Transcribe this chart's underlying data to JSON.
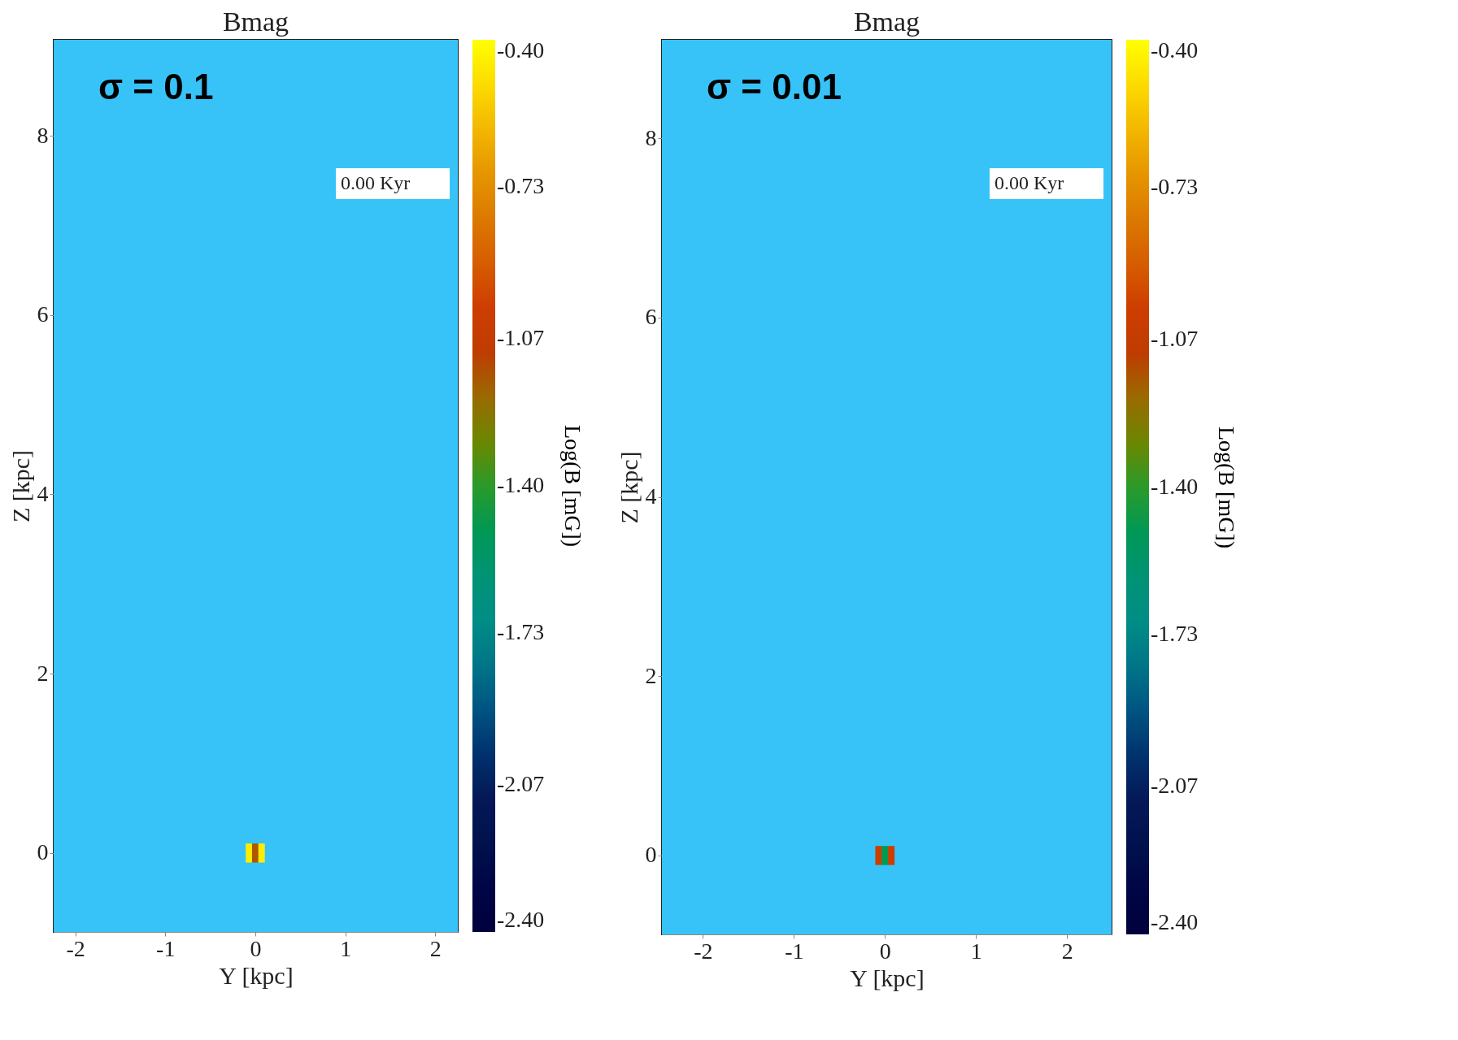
{
  "chart_data": [
    {
      "type": "scatter",
      "title": "Bmag",
      "xlabel": "Y [kpc]",
      "ylabel": "Z [kpc]",
      "clabel": "Log(B [mG])",
      "marker": "square",
      "x": [
        -0.07,
        0,
        0.07,
        -0.07,
        0,
        0.07,
        -0.07,
        0,
        0.07
      ],
      "values": [
        0.07,
        0.07,
        0.07,
        0,
        0,
        0,
        -0.07,
        -0.07,
        -0.07
      ],
      "cvalues": [
        -0.45,
        -1.15,
        -0.45,
        -0.45,
        -1.15,
        -0.45,
        -0.45,
        -1.15,
        -0.45
      ],
      "clim": [
        -2.4,
        -0.4
      ],
      "cticks": [
        {
          "value": -2.4,
          "label": "-2.40"
        },
        -2.07,
        -1.73,
        {
          "value": -1.4,
          "label": "-1.40"
        },
        -1.07,
        -0.73,
        {
          "value": -0.4,
          "label": "-0.40"
        }
      ],
      "xlim": [
        -2.24,
        2.25
      ],
      "ylim": [
        -0.88,
        9.07
      ],
      "xticks": [
        -2,
        -1,
        0,
        1,
        2
      ],
      "yticks": [
        0,
        2,
        4,
        6,
        8
      ],
      "grid": false,
      "annotations": [
        "σ = 0.1",
        "0.00 Kyr"
      ]
    },
    {
      "type": "scatter",
      "title": "Bmag",
      "xlabel": "Y [kpc]",
      "ylabel": "Z [kpc]",
      "clabel": "Log(B [mG])",
      "marker": "square",
      "x": [
        -0.07,
        0,
        0.07,
        -0.07,
        0,
        0.07,
        -0.07,
        0,
        0.07
      ],
      "values": [
        0.07,
        0.07,
        0.07,
        0,
        0,
        0,
        -0.07,
        -0.07,
        -0.07
      ],
      "cvalues": [
        -1.0,
        -1.48,
        -1.0,
        -1.0,
        -1.48,
        -1.0,
        -1.0,
        -1.48,
        -1.0
      ],
      "clim": [
        -2.4,
        -0.4
      ],
      "cticks": [
        {
          "value": -2.4,
          "label": "-2.40"
        },
        -2.07,
        -1.73,
        {
          "value": -1.4,
          "label": "-1.40"
        },
        -1.07,
        -0.73,
        {
          "value": -0.4,
          "label": "-0.40"
        }
      ],
      "xlim": [
        -2.45,
        2.49
      ],
      "ylim": [
        -0.88,
        9.1
      ],
      "xticks": [
        -2,
        -1,
        0,
        1,
        2
      ],
      "yticks": [
        0,
        2,
        4,
        6,
        8
      ],
      "grid": false,
      "annotations": [
        "σ = 0.01",
        "0.00 Kyr"
      ]
    }
  ]
}
